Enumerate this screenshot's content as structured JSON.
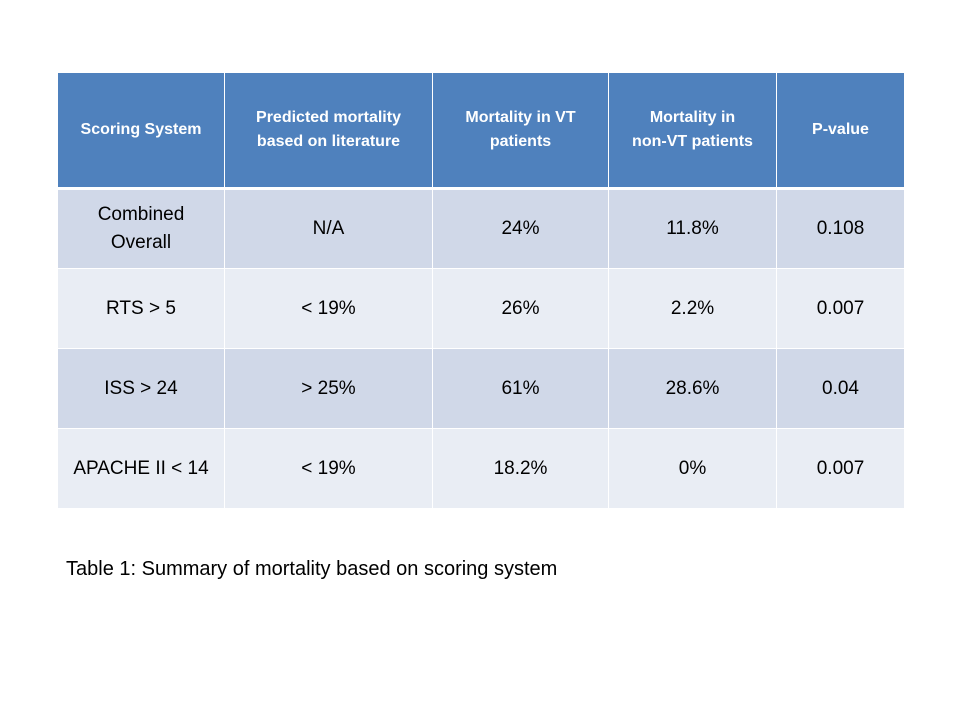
{
  "table": {
    "headers": [
      "Scoring System",
      "Predicted mortality\nbased on literature",
      "Mortality in VT\npatients",
      "Mortality in\nnon-VT patients",
      "P-value"
    ],
    "rows": [
      [
        "Combined\nOverall",
        "N/A",
        "24%",
        "11.8%",
        "0.108"
      ],
      [
        "RTS > 5",
        "< 19%",
        "26%",
        "2.2%",
        "0.007"
      ],
      [
        "ISS > 24",
        "> 25%",
        "61%",
        "28.6%",
        "0.04"
      ],
      [
        "APACHE II < 14",
        "< 19%",
        "18.2%",
        "0%",
        "0.007"
      ]
    ]
  },
  "caption": "Table 1: Summary of mortality based on scoring system",
  "colors": {
    "header_bg": "#4f81bd",
    "row_dark": "#d0d8e8",
    "row_light": "#e9edf4"
  }
}
